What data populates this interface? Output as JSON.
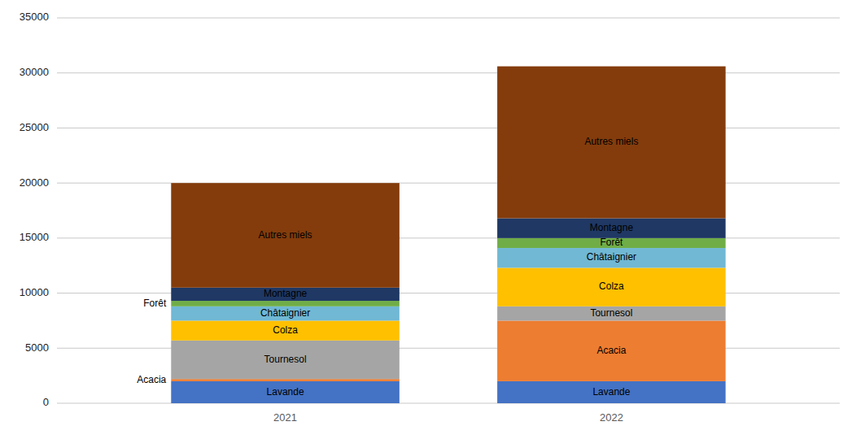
{
  "chart_data": {
    "type": "bar",
    "stacked": true,
    "categories": [
      "2021",
      "2022"
    ],
    "series": [
      {
        "name": "Lavande",
        "color": "#4472C4",
        "values": [
          2000,
          2000
        ]
      },
      {
        "name": "Acacia",
        "color": "#ED7D31",
        "values": [
          200,
          5500
        ]
      },
      {
        "name": "Tournesol",
        "color": "#A5A5A5",
        "values": [
          3500,
          1300
        ]
      },
      {
        "name": "Colza",
        "color": "#FFC000",
        "values": [
          1800,
          3500
        ]
      },
      {
        "name": "Châtaignier",
        "color": "#70B8D4",
        "values": [
          1300,
          1800
        ]
      },
      {
        "name": "Forêt",
        "color": "#70AD47",
        "values": [
          500,
          900
        ]
      },
      {
        "name": "Montagne",
        "color": "#1F3864",
        "values": [
          1200,
          1800
        ]
      },
      {
        "name": "Autres miels",
        "color": "#843C0C",
        "values": [
          9500,
          13800
        ]
      }
    ],
    "ylim": [
      0,
      35000
    ],
    "yticks": [
      0,
      5000,
      10000,
      15000,
      20000,
      25000,
      30000,
      35000
    ],
    "grid": true
  }
}
